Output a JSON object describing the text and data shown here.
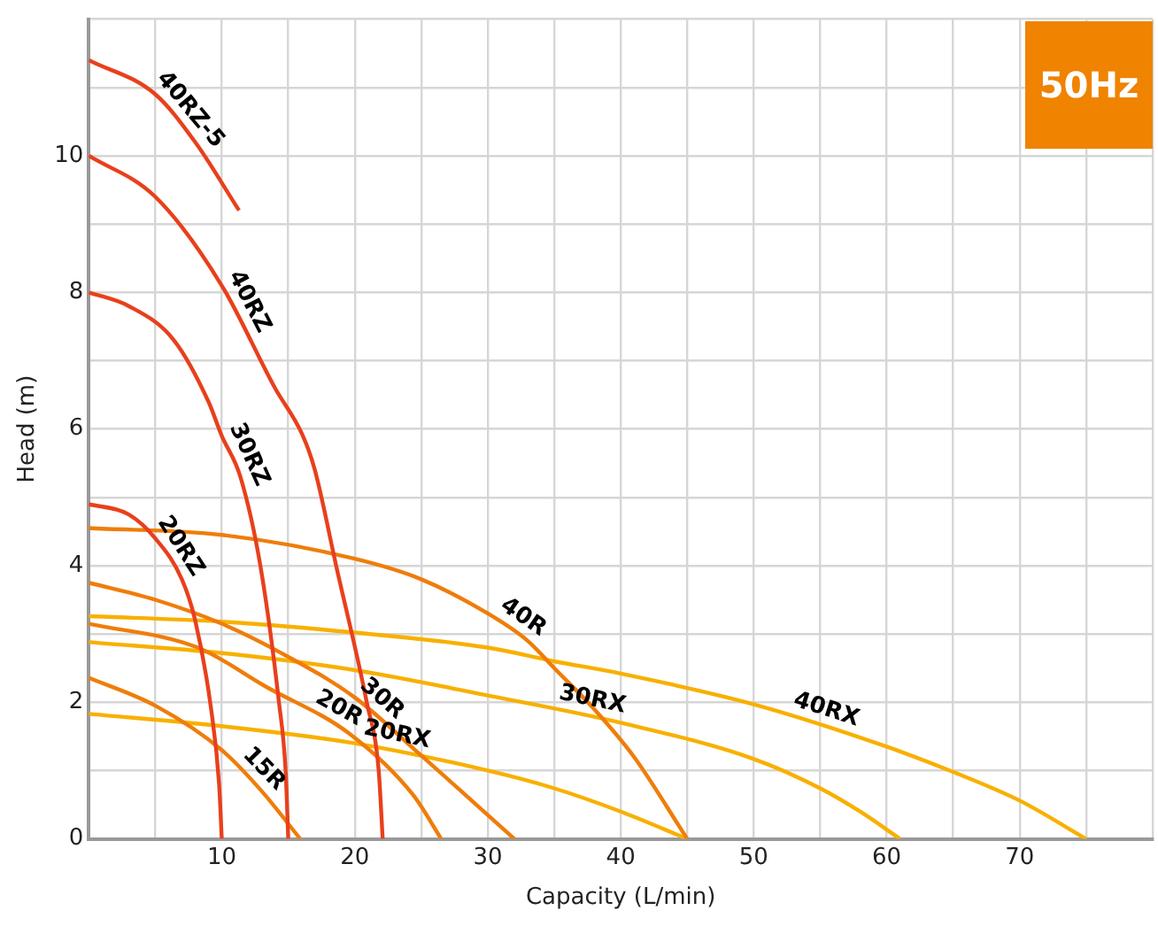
{
  "chart_data": {
    "type": "line",
    "xlabel": "Capacity (L/min)",
    "ylabel": "Head (m)",
    "annotations": [
      "50Hz"
    ],
    "xlim": [
      0,
      80
    ],
    "xticks": [
      {
        "value": 0,
        "label": null
      },
      {
        "value": 5,
        "label": null
      },
      10,
      {
        "value": 15,
        "label": null
      },
      20,
      {
        "value": 25,
        "label": null
      },
      30,
      {
        "value": 35,
        "label": null
      },
      40,
      {
        "value": 45,
        "label": null
      },
      50,
      {
        "value": 55,
        "label": null
      },
      60,
      {
        "value": 65,
        "label": null
      },
      70,
      {
        "value": 75,
        "label": null
      },
      {
        "value": 80,
        "label": null
      }
    ],
    "ylim": [
      0,
      12
    ],
    "yticks": [
      0,
      {
        "value": 1,
        "label": null
      },
      2,
      {
        "value": 3,
        "label": null
      },
      4,
      {
        "value": 5,
        "label": null
      },
      6,
      {
        "value": 7,
        "label": null
      },
      8,
      {
        "value": 9,
        "label": null
      },
      10,
      {
        "value": 11,
        "label": null
      },
      {
        "value": 12,
        "label": null
      }
    ],
    "grid": true,
    "legend": false,
    "marker": "none",
    "line_style": "solid",
    "series": [
      {
        "name": "40RZ-5",
        "color": "#e8401c",
        "x": [
          0,
          5,
          8,
          11.3
        ],
        "values": [
          11.4,
          10.9,
          10.2,
          9.2
        ]
      },
      {
        "name": "40RZ",
        "color": "#e8401c",
        "x": [
          0,
          5,
          10,
          14,
          16.1,
          17,
          18.6,
          20.9,
          21.8,
          22.1
        ],
        "values": [
          10,
          9.4,
          8.1,
          6.6,
          5.9,
          5.4,
          4,
          2,
          1,
          0
        ]
      },
      {
        "name": "30RZ",
        "color": "#e8401c",
        "x": [
          0,
          3,
          6.4,
          9,
          10,
          11.4,
          12.9,
          14.3,
          14.8,
          15
        ],
        "values": [
          8,
          7.8,
          7.3,
          6.4,
          5.9,
          5.3,
          4,
          2,
          1,
          0
        ]
      },
      {
        "name": "20RZ",
        "color": "#e8401c",
        "x": [
          0,
          3,
          5,
          7,
          8,
          9.2,
          9.8,
          10
        ],
        "values": [
          4.9,
          4.75,
          4.4,
          3.8,
          3.2,
          1.9,
          0.8,
          0
        ]
      },
      {
        "name": "40R",
        "color": "#ef7d0a",
        "x": [
          0,
          10,
          20,
          25,
          30,
          33,
          35,
          38,
          41,
          45
        ],
        "values": [
          4.55,
          4.45,
          4.1,
          3.8,
          3.3,
          2.9,
          2.5,
          1.9,
          1.2,
          0
        ]
      },
      {
        "name": "30R",
        "color": "#ef7d0a",
        "x": [
          0,
          5,
          10,
          14.1,
          20,
          25,
          28,
          32
        ],
        "values": [
          3.75,
          3.5,
          3.15,
          2.76,
          2.07,
          1.22,
          0.7,
          0
        ]
      },
      {
        "name": "20R",
        "color": "#ef7d0a",
        "x": [
          0,
          8.2,
          13.3,
          19.6,
          24.4,
          26.5
        ],
        "values": [
          3.15,
          2.8,
          2.23,
          1.54,
          0.64,
          0
        ]
      },
      {
        "name": "15R",
        "color": "#ef7d0a",
        "x": [
          0,
          5,
          10,
          13,
          15.9
        ],
        "values": [
          2.36,
          1.95,
          1.3,
          0.7,
          0
        ]
      },
      {
        "name": "40RX",
        "color": "#f8b000",
        "x": [
          0,
          10,
          20,
          30,
          35,
          40,
          50,
          60,
          65,
          70,
          75
        ],
        "values": [
          3.26,
          3.18,
          3.02,
          2.8,
          2.6,
          2.42,
          1.97,
          1.35,
          0.98,
          0.56,
          0
        ]
      },
      {
        "name": "30RX",
        "color": "#f8b000",
        "x": [
          0,
          10,
          20,
          30,
          40,
          50,
          55,
          58,
          61
        ],
        "values": [
          2.88,
          2.72,
          2.47,
          2.1,
          1.7,
          1.17,
          0.74,
          0.4,
          0
        ]
      },
      {
        "name": "20RX",
        "color": "#f8b000",
        "x": [
          0,
          10,
          20,
          30,
          35,
          40,
          45
        ],
        "values": [
          1.83,
          1.65,
          1.4,
          1,
          0.74,
          0.4,
          0
        ]
      }
    ]
  }
}
